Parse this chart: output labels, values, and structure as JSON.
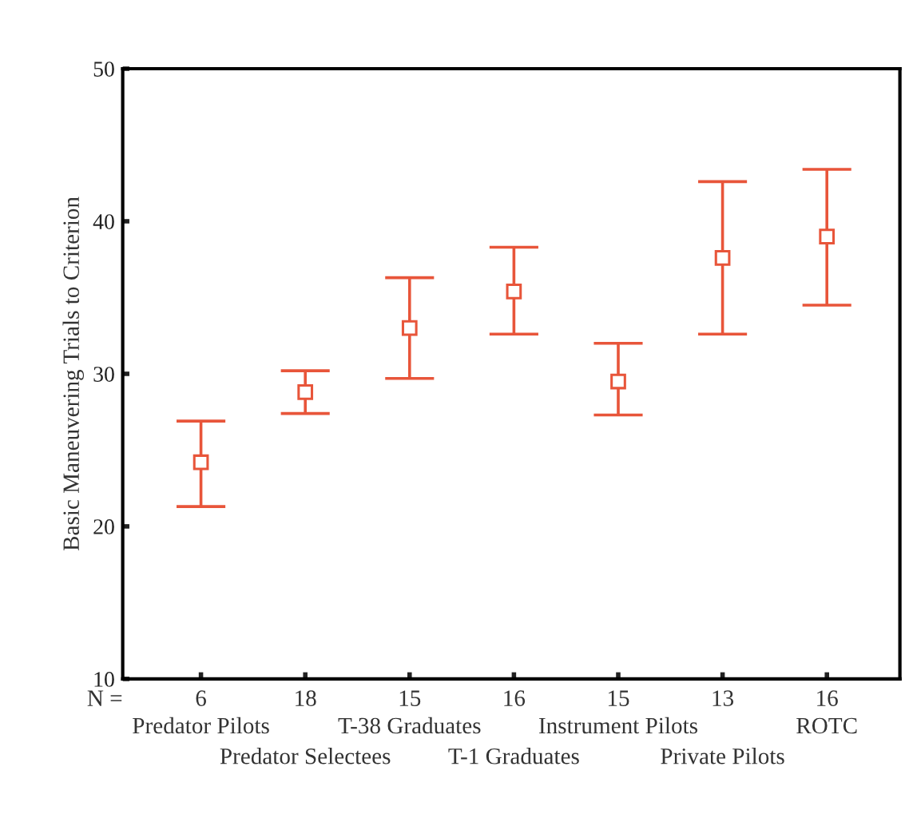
{
  "chart_data": {
    "type": "scatter",
    "ylabel": "Basic Maneuvering Trials to Criterion",
    "categories": [
      "Predator Pilots",
      "Predator Selectees",
      "T-38 Graduates",
      "T-1 Graduates",
      "Instrument Pilots",
      "Private Pilots",
      "ROTC"
    ],
    "series": [
      {
        "color": "#e8553a",
        "values": [
          24.2,
          28.8,
          33.0,
          35.4,
          29.5,
          37.6,
          39.0
        ],
        "errors": [
          [
            21.3,
            26.9
          ],
          [
            27.4,
            30.2
          ],
          [
            29.7,
            36.3
          ],
          [
            32.6,
            38.3
          ],
          [
            27.3,
            32.0
          ],
          [
            32.6,
            42.6
          ],
          [
            34.5,
            43.4
          ]
        ]
      }
    ],
    "marker": "square",
    "ylim": [
      10,
      50
    ],
    "yticks": [
      10,
      20,
      30,
      40,
      50
    ],
    "grid": false,
    "legend": false,
    "annotations": [
      "N =",
      "6",
      "18",
      "15",
      "16",
      "15",
      "13",
      "16"
    ]
  }
}
